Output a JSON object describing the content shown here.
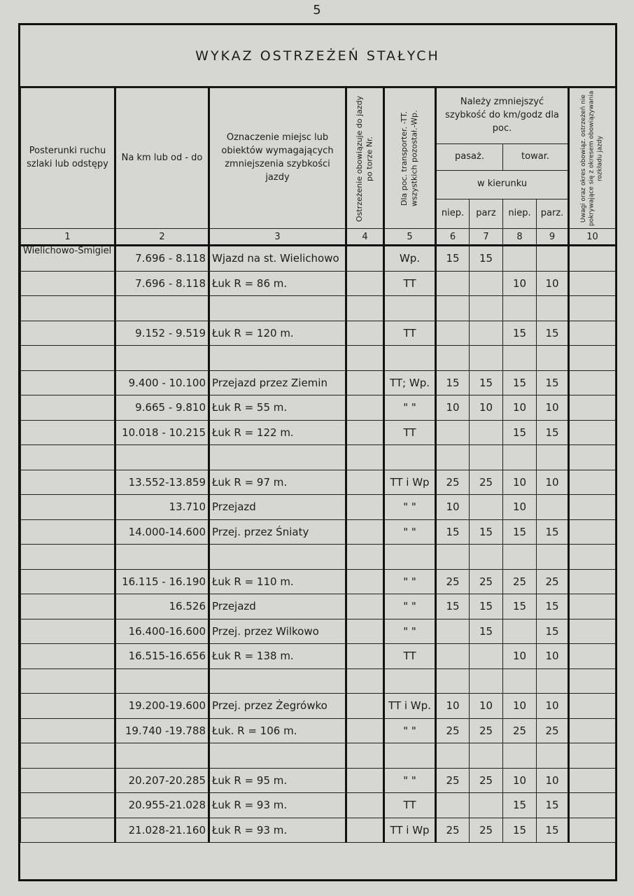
{
  "page_number": "5",
  "title": "WYKAZ OSTRZEŻEŃ STAŁYCH",
  "headers": {
    "col1": "Posterunki ruchu szlaki lub odstępy",
    "col2": "Na km lub od - do",
    "col3": "Oznaczenie miejsc lub obiektów wymagających zmniejszenia szybkości jazdy",
    "col4": "Ostrzeżenie obowiązuje do jazdy po torze Nr.",
    "col5": "Dla poc. transporter. -TT. wszystkich pozostał.-Wp.",
    "speed_group": "Należy zmniejszyć szybkość do km/godz dla poc.",
    "pasaz": "pasaż.",
    "towar": "towar.",
    "w_kierunku": "w kierunku",
    "niep1": "niep.",
    "parz1": "parz",
    "niep2": "niep.",
    "parz2": "parz.",
    "col10": "Uwagi oraz okres obowiąz. ostrzeżeń nie pokrywające się z okresem obowiązywania rozkładu jazdy"
  },
  "column_numbers": [
    "1",
    "2",
    "3",
    "4",
    "5",
    "6",
    "7",
    "8",
    "9",
    "10"
  ],
  "rows": [
    [
      "Wielichowo-Śmigiel",
      "7.696 - 8.118",
      "Wjazd na st. Wielichowo",
      "",
      "Wp.",
      "15",
      "15",
      "",
      "",
      ""
    ],
    [
      "",
      "7.696 - 8.118",
      "Łuk R = 86 m.",
      "",
      "TT",
      "",
      "",
      "10",
      "10",
      ""
    ],
    [
      "",
      "",
      "",
      "",
      "",
      "",
      "",
      "",
      "",
      ""
    ],
    [
      "",
      "9.152 - 9.519",
      "Łuk R = 120 m.",
      "",
      "TT",
      "",
      "",
      "15",
      "15",
      ""
    ],
    [
      "",
      "",
      "",
      "",
      "",
      "",
      "",
      "",
      "",
      ""
    ],
    [
      "",
      "9.400 - 10.100",
      "Przejazd przez Ziemin",
      "",
      "TT; Wp.",
      "15",
      "15",
      "15",
      "15",
      ""
    ],
    [
      "",
      "9.665 - 9.810",
      "Łuk R = 55 m.",
      "",
      "\"  \"",
      "10",
      "10",
      "10",
      "10",
      ""
    ],
    [
      "",
      "10.018 - 10.215",
      "Łuk R = 122 m.",
      "",
      "TT",
      "",
      "",
      "15",
      "15",
      ""
    ],
    [
      "",
      "",
      "",
      "",
      "",
      "",
      "",
      "",
      "",
      ""
    ],
    [
      "",
      "13.552-13.859",
      "Łuk R = 97 m.",
      "",
      "TT i Wp",
      "25",
      "25",
      "10",
      "10",
      ""
    ],
    [
      "",
      "13.710",
      "Przejazd",
      "",
      "\"  \"",
      "10",
      "",
      "10",
      "",
      ""
    ],
    [
      "",
      "14.000-14.600",
      "Przej. przez Śniaty",
      "",
      "\"  \"",
      "15",
      "15",
      "15",
      "15",
      ""
    ],
    [
      "",
      "",
      "",
      "",
      "",
      "",
      "",
      "",
      "",
      ""
    ],
    [
      "",
      "16.115 - 16.190",
      "Łuk R = 110 m.",
      "",
      "\"  \"",
      "25",
      "25",
      "25",
      "25",
      ""
    ],
    [
      "",
      "16.526",
      "Przejazd",
      "",
      "\"  \"",
      "15",
      "15",
      "15",
      "15",
      ""
    ],
    [
      "",
      "16.400-16.600",
      "Przej. przez Wilkowo",
      "",
      "\"  \"",
      "",
      "15",
      "",
      "15",
      ""
    ],
    [
      "",
      "16.515-16.656",
      "Łuk R = 138 m.",
      "",
      "TT",
      "",
      "",
      "10",
      "10",
      ""
    ],
    [
      "",
      "",
      "",
      "",
      "",
      "",
      "",
      "",
      "",
      ""
    ],
    [
      "",
      "19.200-19.600",
      "Przej. przez Żegrówko",
      "",
      "TT i Wp.",
      "10",
      "10",
      "10",
      "10",
      ""
    ],
    [
      "",
      "19.740 -19.788",
      "Łuk. R = 106 m.",
      "",
      "\"  \"",
      "25",
      "25",
      "25",
      "25",
      ""
    ],
    [
      "",
      "",
      "",
      "",
      "",
      "",
      "",
      "",
      "",
      ""
    ],
    [
      "",
      "20.207-20.285",
      "Łuk R = 95 m.",
      "",
      "\"  \"",
      "25",
      "25",
      "10",
      "10",
      ""
    ],
    [
      "",
      "20.955-21.028",
      "Łuk R = 93 m.",
      "",
      "TT",
      "",
      "",
      "15",
      "15",
      ""
    ],
    [
      "",
      "21.028-21.160",
      "Łuk R = 93 m.",
      "",
      "TT i Wp",
      "25",
      "25",
      "15",
      "15",
      ""
    ]
  ]
}
